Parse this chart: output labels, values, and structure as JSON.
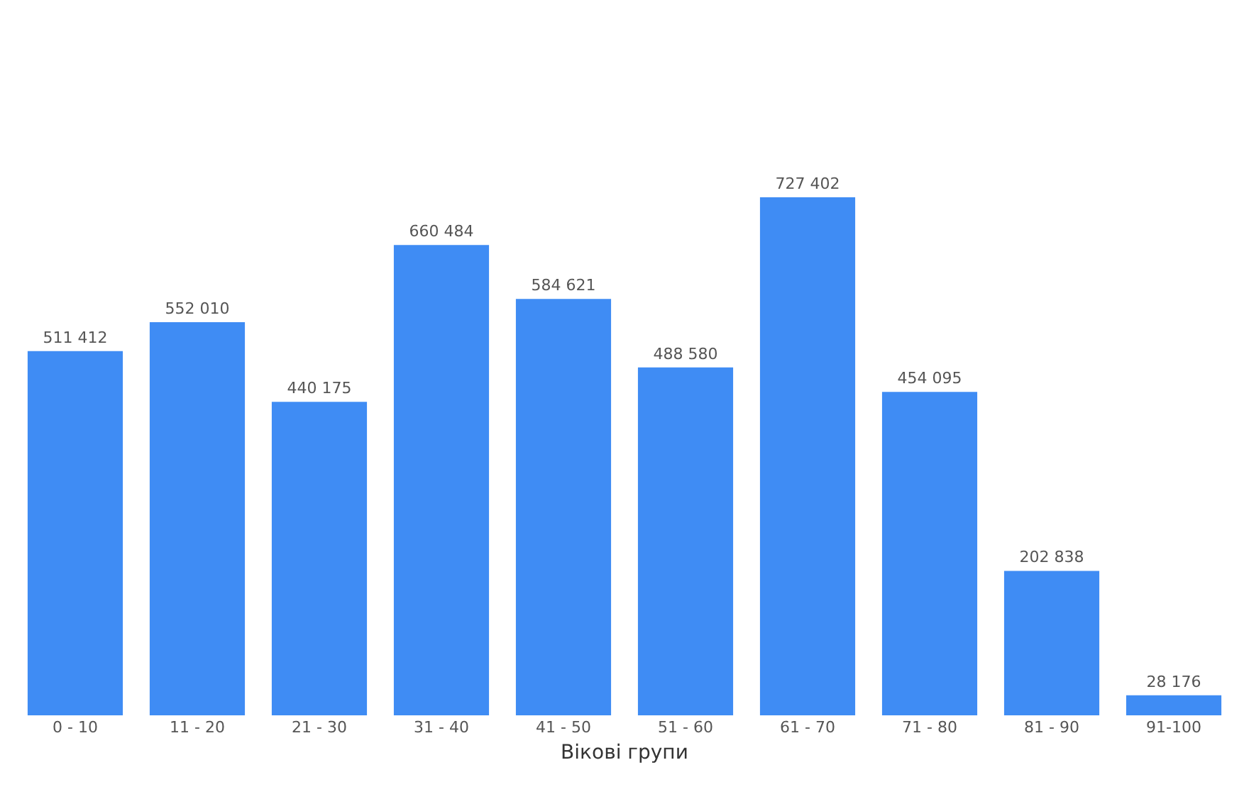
{
  "chart_data": {
    "type": "bar",
    "xlabel": "Вікові групи",
    "categories": [
      "0 - 10",
      "11 - 20",
      "21 - 30",
      "31 - 40",
      "41 - 50",
      "51 - 60",
      "61 - 70",
      "71 - 80",
      "81 - 90",
      "91-100"
    ],
    "values": [
      511412,
      552010,
      440175,
      660484,
      584621,
      488580,
      727402,
      454095,
      202838,
      28176
    ],
    "value_labels": [
      "511 412",
      "552 010",
      "440 175",
      "660 484",
      "584 621",
      "488 580",
      "727 402",
      "454 095",
      "202 838",
      "28 176"
    ],
    "color": "#3f8cf4",
    "legend": false
  }
}
